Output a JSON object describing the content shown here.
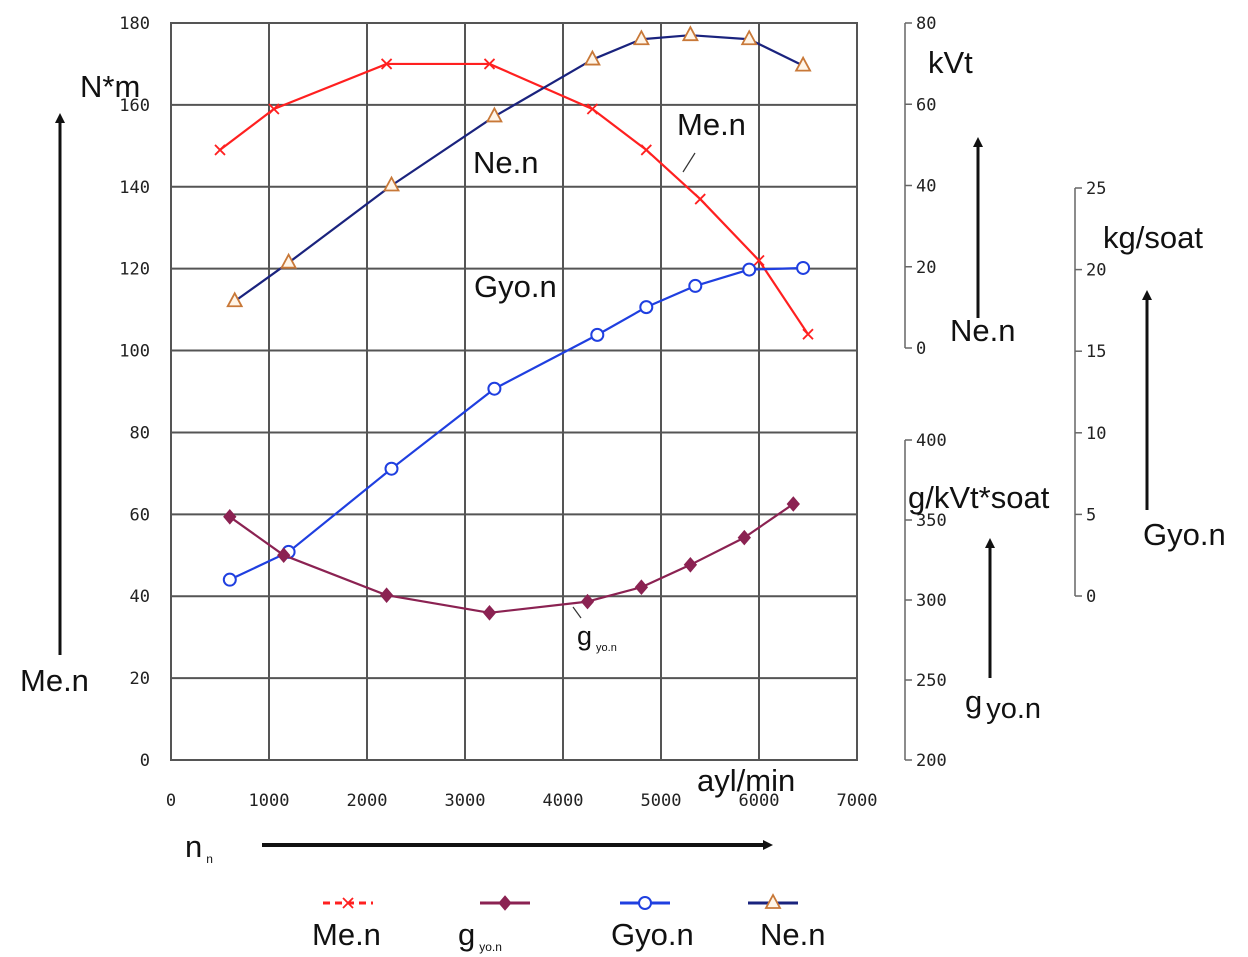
{
  "chart_data": {
    "type": "line",
    "x": {
      "ticks": [
        0,
        1000,
        2000,
        3000,
        4000,
        5000,
        6000,
        7000
      ],
      "range": [
        0,
        7000
      ],
      "unit": "ayl/min",
      "symbol": "n",
      "symbol_sub": "n"
    },
    "axes": {
      "torque": {
        "label": "N*m",
        "arrow_label": "Me.n",
        "ticks": [
          0,
          20,
          40,
          60,
          80,
          100,
          120,
          140,
          160,
          180
        ],
        "range": [
          0,
          180
        ]
      },
      "power": {
        "label": "kVt",
        "arrow_label": "Ne.n",
        "ticks": [
          0,
          20,
          40,
          60,
          80
        ],
        "range": [
          0,
          80
        ]
      },
      "fuel_hourly": {
        "label": "kg/soat",
        "arrow_label": "Gyo.n",
        "ticks": [
          0,
          5,
          10,
          15,
          20,
          25
        ],
        "range": [
          0,
          25
        ]
      },
      "fuel_specific": {
        "label": "g/kVt*soat",
        "arrow_label_main": "g",
        "arrow_label_sub": "yo.n",
        "ticks": [
          200,
          250,
          300,
          350,
          400
        ],
        "range": [
          200,
          400
        ]
      }
    },
    "grid": true,
    "series": [
      {
        "name": "Me.n",
        "axis": "torque",
        "color": "#ff2020",
        "marker": "x",
        "dashed": false,
        "points": [
          [
            500,
            149
          ],
          [
            1050,
            159
          ],
          [
            2200,
            170
          ],
          [
            3250,
            170
          ],
          [
            4300,
            159
          ],
          [
            4850,
            149
          ],
          [
            5400,
            137
          ],
          [
            6000,
            122
          ],
          [
            6500,
            104
          ]
        ]
      },
      {
        "name": "Ne.n",
        "axis": "power",
        "color": "#1a237e",
        "marker": "triangle",
        "dashed": false,
        "points": [
          [
            650,
            11.5
          ],
          [
            1200,
            21
          ],
          [
            2250,
            40
          ],
          [
            3300,
            57
          ],
          [
            4300,
            71
          ],
          [
            4800,
            76
          ],
          [
            5300,
            77
          ],
          [
            5900,
            76
          ],
          [
            6450,
            69.5
          ]
        ]
      },
      {
        "name": "Gyo.n",
        "axis": "fuel_hourly",
        "color": "#1f3fe0",
        "marker": "circle",
        "dashed": false,
        "points": [
          [
            600,
            1.0
          ],
          [
            1200,
            2.7
          ],
          [
            2250,
            7.8
          ],
          [
            3300,
            12.7
          ],
          [
            4350,
            16.0
          ],
          [
            4850,
            17.7
          ],
          [
            5350,
            19.0
          ],
          [
            5900,
            20.0
          ],
          [
            6450,
            20.1
          ]
        ]
      },
      {
        "name_main": "g",
        "name_sub": "yo.n",
        "axis": "fuel_specific",
        "color": "#8b2252",
        "marker": "diamond",
        "dashed": false,
        "points": [
          [
            600,
            352
          ],
          [
            1150,
            328
          ],
          [
            2200,
            303
          ],
          [
            3250,
            292
          ],
          [
            4250,
            299
          ],
          [
            4800,
            308
          ],
          [
            5300,
            322
          ],
          [
            5850,
            339
          ],
          [
            6350,
            360
          ]
        ]
      }
    ],
    "annotations": {
      "me_main": "g",
      "me_sub": "yo.n",
      "me_curve_label": "Me.n",
      "ne_curve_label": "Ne.n",
      "gyo_curve_label": "Gyo.n"
    },
    "legend": {
      "placement": "bottom",
      "items": [
        {
          "label": "Me.n",
          "marker": "x",
          "color": "#ff2020",
          "dashed": true
        },
        {
          "label_main": "g",
          "label_sub": "yo.n",
          "marker": "diamond",
          "color": "#8b2252",
          "dashed": false
        },
        {
          "label": "Gyo.n",
          "marker": "circle",
          "color": "#1f3fe0",
          "dashed": false
        },
        {
          "label": "Ne.n",
          "marker": "triangle",
          "color": "#1a237e",
          "dashed": false
        }
      ]
    }
  }
}
